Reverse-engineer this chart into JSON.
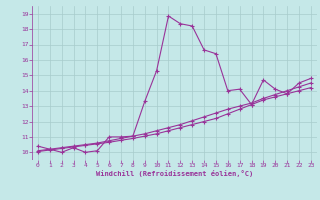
{
  "xlabel": "Windchill (Refroidissement éolien,°C)",
  "xlim": [
    -0.5,
    23.5
  ],
  "ylim": [
    9.5,
    19.5
  ],
  "xticks": [
    0,
    1,
    2,
    3,
    4,
    5,
    6,
    7,
    8,
    9,
    10,
    11,
    12,
    13,
    14,
    15,
    16,
    17,
    18,
    19,
    20,
    21,
    22,
    23
  ],
  "yticks": [
    10,
    11,
    12,
    13,
    14,
    15,
    16,
    17,
    18,
    19
  ],
  "bg_color": "#c5e8e8",
  "line_color": "#993399",
  "grid_color": "#a8cccc",
  "line1_x": [
    0,
    1,
    2,
    3,
    4,
    5,
    6,
    7,
    8,
    9,
    10,
    11,
    12,
    13,
    14,
    15,
    16,
    17,
    18,
    19,
    20,
    21,
    22,
    23
  ],
  "line1_y": [
    10.4,
    10.2,
    10.0,
    10.3,
    10.0,
    10.1,
    11.0,
    11.0,
    11.05,
    13.3,
    15.3,
    18.85,
    18.35,
    18.2,
    16.65,
    16.4,
    14.0,
    14.1,
    13.1,
    14.7,
    14.1,
    13.8,
    14.5,
    14.8
  ],
  "line2_x": [
    0,
    1,
    2,
    3,
    4,
    5,
    6,
    7,
    8,
    9,
    10,
    11,
    12,
    13,
    14,
    15,
    16,
    17,
    18,
    19,
    20,
    21,
    22,
    23
  ],
  "line2_y": [
    10.05,
    10.15,
    10.25,
    10.35,
    10.45,
    10.55,
    10.65,
    10.78,
    10.9,
    11.05,
    11.2,
    11.4,
    11.6,
    11.8,
    12.0,
    12.2,
    12.5,
    12.8,
    13.1,
    13.4,
    13.6,
    13.8,
    14.0,
    14.2
  ],
  "line3_x": [
    0,
    1,
    2,
    3,
    4,
    5,
    6,
    7,
    8,
    9,
    10,
    11,
    12,
    13,
    14,
    15,
    16,
    17,
    18,
    19,
    20,
    21,
    22,
    23
  ],
  "line3_y": [
    10.1,
    10.2,
    10.3,
    10.4,
    10.5,
    10.6,
    10.75,
    10.9,
    11.05,
    11.2,
    11.4,
    11.6,
    11.8,
    12.05,
    12.3,
    12.55,
    12.8,
    13.0,
    13.2,
    13.5,
    13.75,
    14.0,
    14.25,
    14.5
  ]
}
